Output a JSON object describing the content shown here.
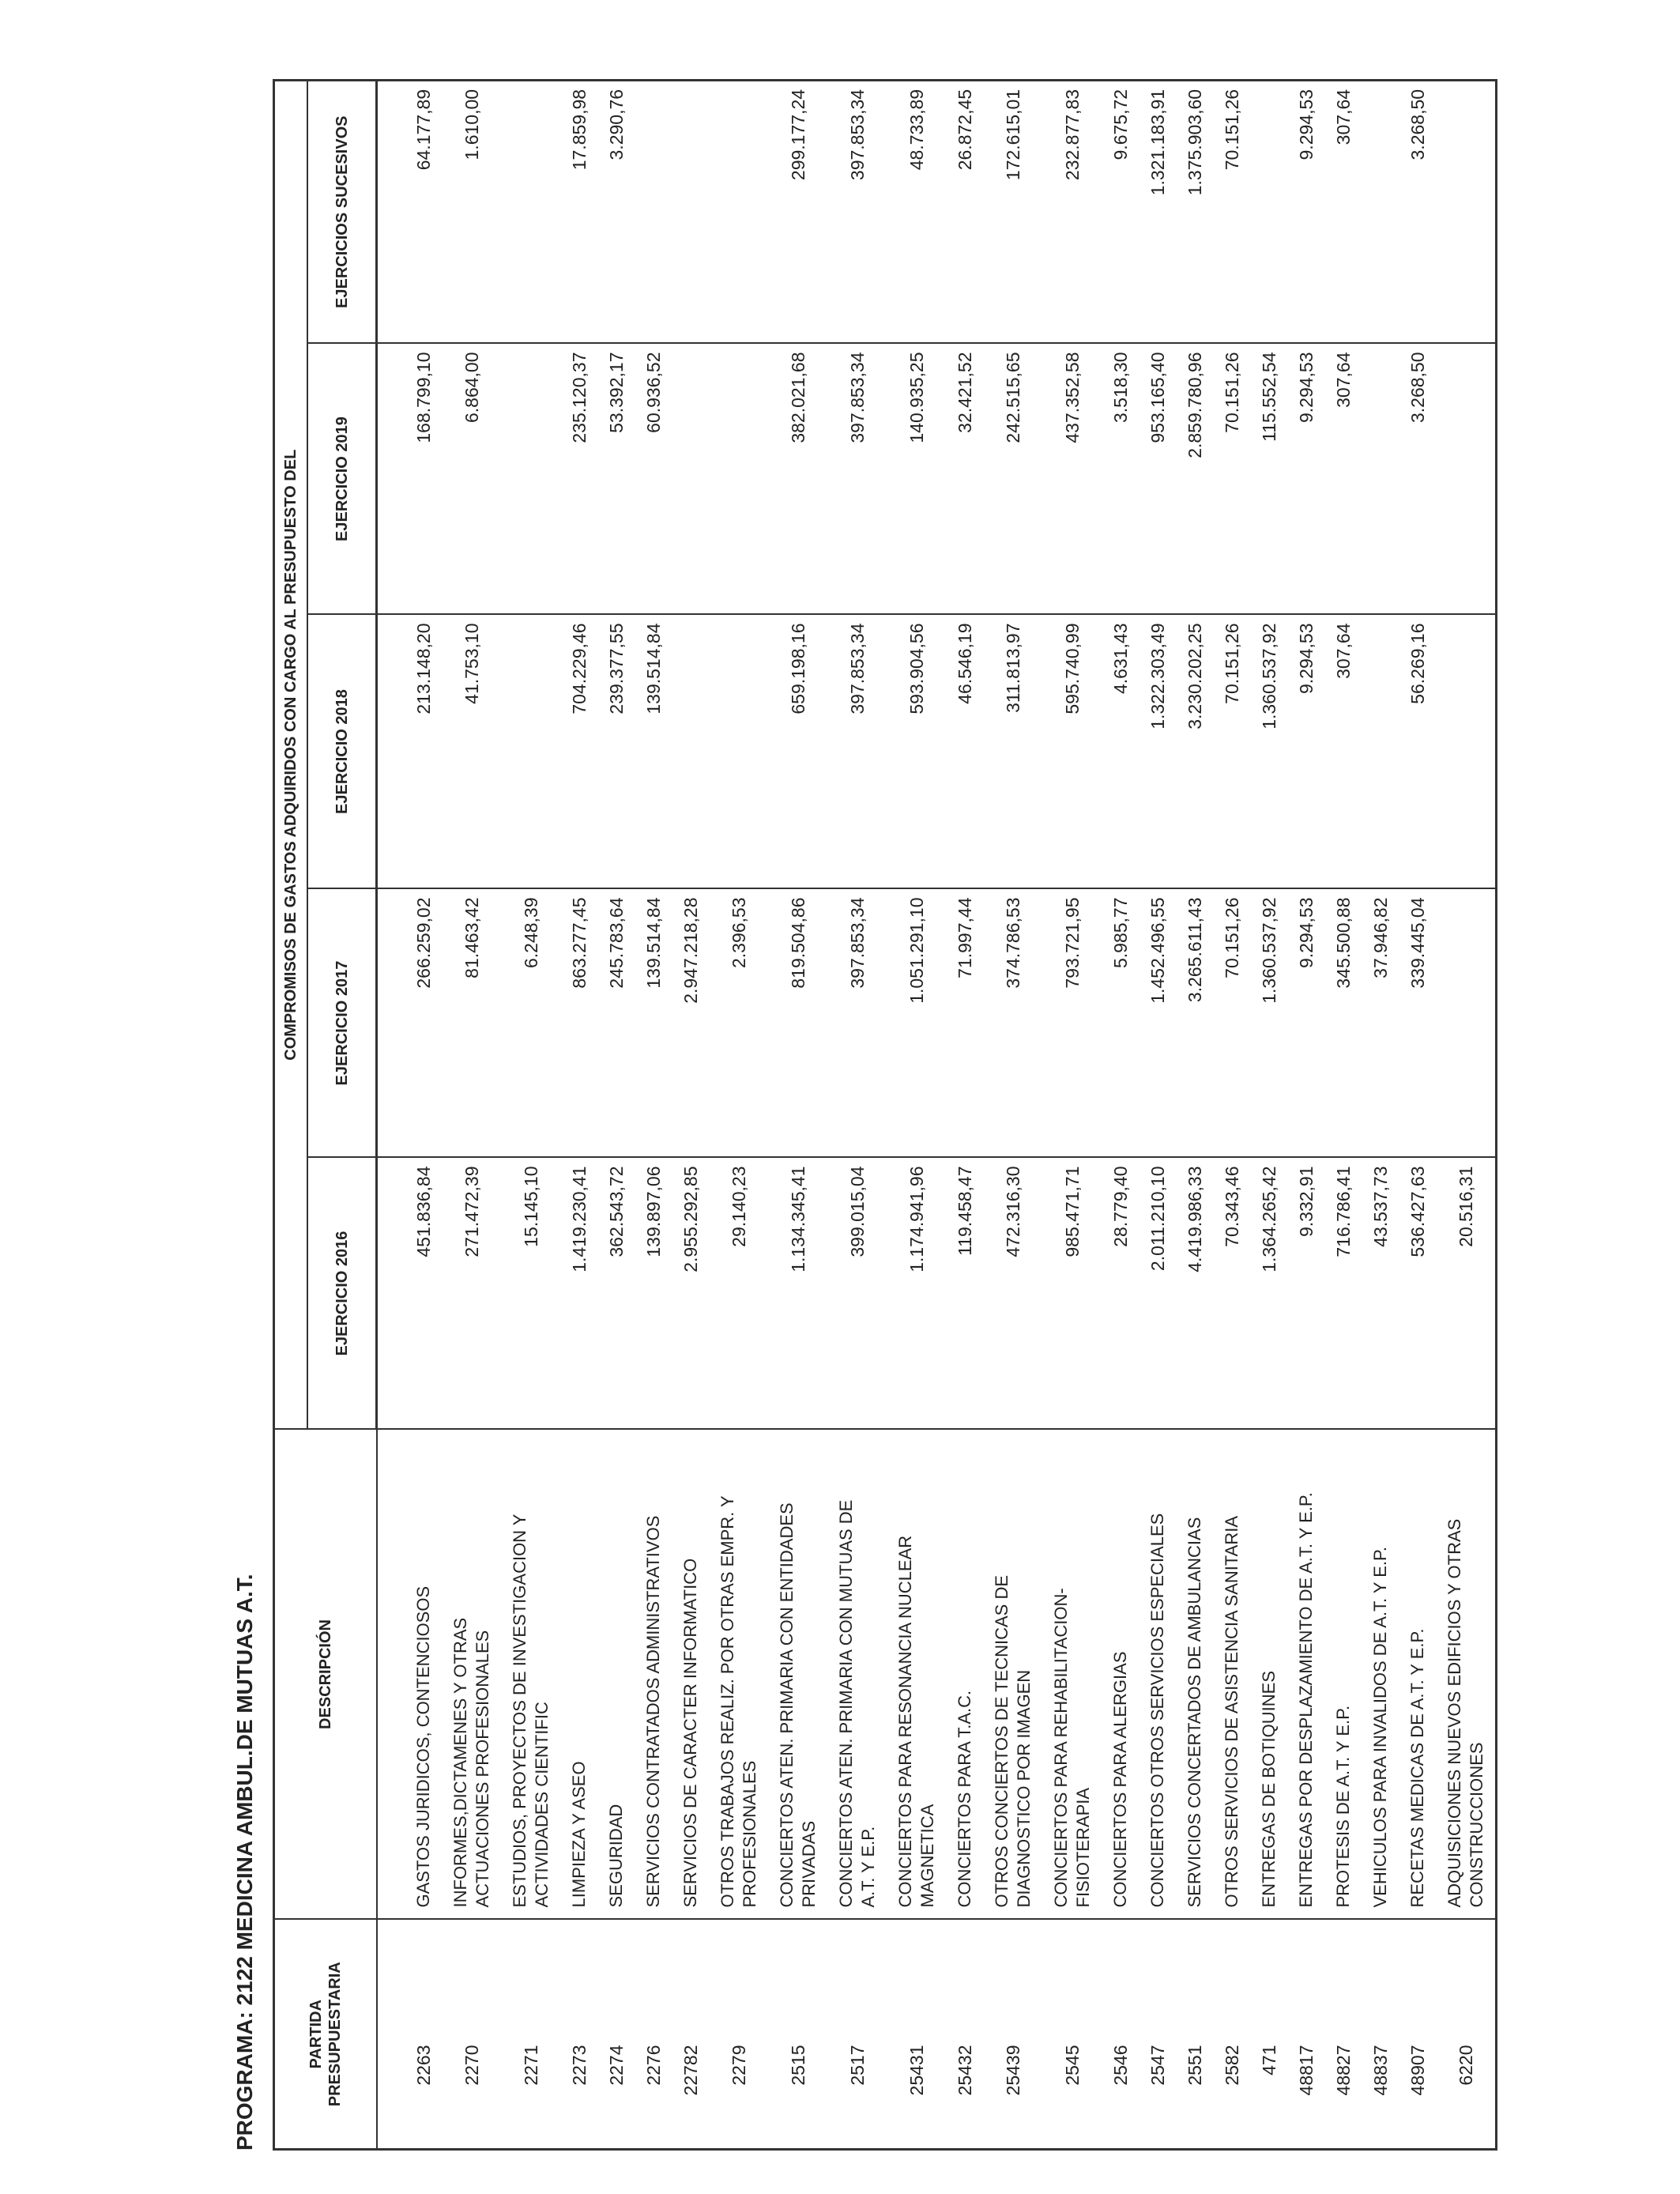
{
  "title": "PROGRAMA: 2122 MEDICINA AMBUL.DE MUTUAS A.T.",
  "headers": {
    "partida": "PARTIDA\nPRESUPUESTARIA",
    "descripcion": "DESCRIPCIÓN",
    "group": "COMPROMISOS DE GASTOS ADQUIRIDOS CON CARGO AL PRESUPUESTO DEL",
    "years": [
      "EJERCICIO 2016",
      "EJERCICIO 2017",
      "EJERCICIO 2018",
      "EJERCICIO 2019",
      "EJERCICIOS SUCESIVOS"
    ]
  },
  "rows": [
    {
      "partida": "2263",
      "descripcion": "GASTOS JURIDICOS, CONTENCIOSOS",
      "values": [
        "451.836,84",
        "266.259,02",
        "213.148,20",
        "168.799,10",
        "64.177,89"
      ]
    },
    {
      "partida": "2270",
      "descripcion": "INFORMES,DICTAMENES Y OTRAS\nACTUACIONES PROFESIONALES",
      "values": [
        "271.472,39",
        "81.463,42",
        "41.753,10",
        "6.864,00",
        "1.610,00"
      ]
    },
    {
      "partida": "2271",
      "descripcion": "ESTUDIOS, PROYECTOS DE INVESTIGACION Y\nACTIVIDADES CIENTIFIC",
      "values": [
        "15.145,10",
        "6.248,39",
        "",
        "",
        ""
      ]
    },
    {
      "partida": "2273",
      "descripcion": "LIMPIEZA Y ASEO",
      "values": [
        "1.419.230,41",
        "863.277,45",
        "704.229,46",
        "235.120,37",
        "17.859,98"
      ]
    },
    {
      "partida": "2274",
      "descripcion": "SEGURIDAD",
      "values": [
        "362.543,72",
        "245.783,64",
        "239.377,55",
        "53.392,17",
        "3.290,76"
      ]
    },
    {
      "partida": "2276",
      "descripcion": "SERVICIOS CONTRATADOS ADMINISTRATIVOS",
      "values": [
        "139.897,06",
        "139.514,84",
        "139.514,84",
        "60.936,52",
        ""
      ]
    },
    {
      "partida": "22782",
      "descripcion": "SERVICIOS DE CARACTER INFORMATICO",
      "values": [
        "2.955.292,85",
        "2.947.218,28",
        "",
        "",
        ""
      ]
    },
    {
      "partida": "2279",
      "descripcion": "OTROS TRABAJOS REALIZ. POR OTRAS EMPR. Y\nPROFESIONALES",
      "values": [
        "29.140,23",
        "2.396,53",
        "",
        "",
        ""
      ]
    },
    {
      "partida": "2515",
      "descripcion": "CONCIERTOS ATEN. PRIMARIA CON ENTIDADES\nPRIVADAS",
      "values": [
        "1.134.345,41",
        "819.504,86",
        "659.198,16",
        "382.021,68",
        "299.177,24"
      ]
    },
    {
      "partida": "2517",
      "descripcion": "CONCIERTOS ATEN. PRIMARIA CON MUTUAS DE\nA.T. Y E.P.",
      "values": [
        "399.015,04",
        "397.853,34",
        "397.853,34",
        "397.853,34",
        "397.853,34"
      ]
    },
    {
      "partida": "25431",
      "descripcion": "CONCIERTOS PARA RESONANCIA NUCLEAR\nMAGNETICA",
      "values": [
        "1.174.941,96",
        "1.051.291,10",
        "593.904,56",
        "140.935,25",
        "48.733,89"
      ]
    },
    {
      "partida": "25432",
      "descripcion": "CONCIERTOS PARA T.A.C.",
      "values": [
        "119.458,47",
        "71.997,44",
        "46.546,19",
        "32.421,52",
        "26.872,45"
      ]
    },
    {
      "partida": "25439",
      "descripcion": "OTROS CONCIERTOS DE TECNICAS DE\nDIAGNOSTICO POR IMAGEN",
      "values": [
        "472.316,30",
        "374.786,53",
        "311.813,97",
        "242.515,65",
        "172.615,01"
      ]
    },
    {
      "partida": "2545",
      "descripcion": "CONCIERTOS PARA REHABILITACION-\nFISIOTERAPIA",
      "values": [
        "985.471,71",
        "793.721,95",
        "595.740,99",
        "437.352,58",
        "232.877,83"
      ]
    },
    {
      "partida": "2546",
      "descripcion": "CONCIERTOS PARA ALERGIAS",
      "values": [
        "28.779,40",
        "5.985,77",
        "4.631,43",
        "3.518,30",
        "9.675,72"
      ]
    },
    {
      "partida": "2547",
      "descripcion": "CONCIERTOS OTROS SERVICIOS ESPECIALES",
      "values": [
        "2.011.210,10",
        "1.452.496,55",
        "1.322.303,49",
        "953.165,40",
        "1.321.183,91"
      ]
    },
    {
      "partida": "2551",
      "descripcion": "SERVICIOS CONCERTADOS DE AMBULANCIAS",
      "values": [
        "4.419.986,33",
        "3.265.611,43",
        "3.230.202,25",
        "2.859.780,96",
        "1.375.903,60"
      ]
    },
    {
      "partida": "2582",
      "descripcion": "OTROS SERVICIOS DE ASISTENCIA SANITARIA",
      "values": [
        "70.343,46",
        "70.151,26",
        "70.151,26",
        "70.151,26",
        "70.151,26"
      ]
    },
    {
      "partida": "471",
      "descripcion": "ENTREGAS DE BOTIQUINES",
      "values": [
        "1.364.265,42",
        "1.360.537,92",
        "1.360.537,92",
        "115.552,54",
        ""
      ]
    },
    {
      "partida": "48817",
      "descripcion": "ENTREGAS POR DESPLAZAMIENTO DE A.T. Y E.P.",
      "values": [
        "9.332,91",
        "9.294,53",
        "9.294,53",
        "9.294,53",
        "9.294,53"
      ]
    },
    {
      "partida": "48827",
      "descripcion": "PROTESIS DE A.T. Y E.P.",
      "values": [
        "716.786,41",
        "345.500,88",
        "307,64",
        "307,64",
        "307,64"
      ]
    },
    {
      "partida": "48837",
      "descripcion": "VEHICULOS PARA INVALIDOS DE A.T. Y E.P.",
      "values": [
        "43.537,73",
        "37.946,82",
        "",
        "",
        ""
      ]
    },
    {
      "partida": "48907",
      "descripcion": "RECETAS MEDICAS DE A.T. Y E.P.",
      "values": [
        "536.427,63",
        "339.445,04",
        "56.269,16",
        "3.268,50",
        "3.268,50"
      ]
    },
    {
      "partida": "6220",
      "descripcion": "ADQUISICIONES NUEVOS EDIFICIOS Y OTRAS\nCONSTRUCCIONES",
      "values": [
        "20.516,31",
        "",
        "",
        "",
        ""
      ]
    }
  ]
}
